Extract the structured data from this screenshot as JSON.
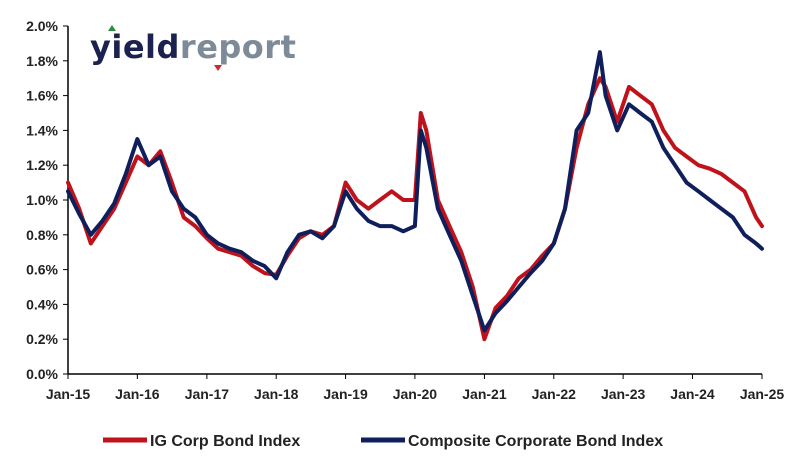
{
  "logo": {
    "part1": "yield",
    "part2": "report",
    "colors": {
      "part1": "#1b2250",
      "part2": "#7d8b99",
      "arrow_up": "#2e8b3e",
      "arrow_down": "#cc2a2a"
    }
  },
  "chart_data": {
    "type": "line",
    "title": "",
    "xlabel": "",
    "ylabel": "",
    "ylim": [
      0,
      2.0
    ],
    "y_ticks": [
      0.0,
      0.2,
      0.4,
      0.6,
      0.8,
      1.0,
      1.2,
      1.4,
      1.6,
      1.8,
      2.0
    ],
    "y_tick_labels": [
      "0.0%",
      "0.2%",
      "0.4%",
      "0.6%",
      "0.8%",
      "1.0%",
      "1.2%",
      "1.4%",
      "1.6%",
      "1.8%",
      "2.0%"
    ],
    "x_ticks": [
      "2015-01",
      "2016-01",
      "2017-01",
      "2018-01",
      "2019-01",
      "2020-01",
      "2021-01",
      "2022-01",
      "2023-01",
      "2024-01",
      "2025-01"
    ],
    "x_tick_labels": [
      "Jan-15",
      "Jan-16",
      "Jan-17",
      "Jan-18",
      "Jan-19",
      "Jan-20",
      "Jan-21",
      "Jan-22",
      "Jan-23",
      "Jan-24",
      "Jan-25"
    ],
    "grid": false,
    "legend_position": "bottom",
    "series": [
      {
        "name": "IG Corp Bond Index",
        "color": "#c0121b",
        "x": [
          "2015-01",
          "2015-03",
          "2015-05",
          "2015-07",
          "2015-09",
          "2015-11",
          "2016-01",
          "2016-03",
          "2016-05",
          "2016-07",
          "2016-09",
          "2016-11",
          "2017-01",
          "2017-03",
          "2017-05",
          "2017-07",
          "2017-09",
          "2017-11",
          "2018-01",
          "2018-03",
          "2018-05",
          "2018-07",
          "2018-09",
          "2018-11",
          "2019-01",
          "2019-03",
          "2019-05",
          "2019-07",
          "2019-09",
          "2019-11",
          "2020-01",
          "2020-02",
          "2020-03",
          "2020-05",
          "2020-07",
          "2020-09",
          "2020-11",
          "2021-01",
          "2021-03",
          "2021-05",
          "2021-07",
          "2021-09",
          "2021-11",
          "2022-01",
          "2022-03",
          "2022-05",
          "2022-07",
          "2022-09",
          "2022-10",
          "2022-12",
          "2023-02",
          "2023-04",
          "2023-06",
          "2023-08",
          "2023-10",
          "2023-12",
          "2024-02",
          "2024-04",
          "2024-06",
          "2024-08",
          "2024-10",
          "2024-12",
          "2025-01"
        ],
        "y": [
          1.1,
          0.95,
          0.75,
          0.85,
          0.95,
          1.1,
          1.25,
          1.2,
          1.28,
          1.1,
          0.9,
          0.85,
          0.78,
          0.72,
          0.7,
          0.68,
          0.62,
          0.58,
          0.57,
          0.68,
          0.78,
          0.82,
          0.8,
          0.85,
          1.1,
          1.0,
          0.95,
          1.0,
          1.05,
          1.0,
          1.0,
          1.5,
          1.4,
          1.0,
          0.85,
          0.7,
          0.5,
          0.2,
          0.38,
          0.45,
          0.55,
          0.6,
          0.68,
          0.75,
          0.95,
          1.3,
          1.55,
          1.7,
          1.65,
          1.45,
          1.65,
          1.6,
          1.55,
          1.4,
          1.3,
          1.25,
          1.2,
          1.18,
          1.15,
          1.1,
          1.05,
          0.9,
          0.85
        ]
      },
      {
        "name": "Composite Corporate Bond Index",
        "color": "#0f1f5c",
        "x": [
          "2015-01",
          "2015-03",
          "2015-05",
          "2015-07",
          "2015-09",
          "2015-11",
          "2016-01",
          "2016-03",
          "2016-05",
          "2016-07",
          "2016-09",
          "2016-11",
          "2017-01",
          "2017-03",
          "2017-05",
          "2017-07",
          "2017-09",
          "2017-11",
          "2018-01",
          "2018-03",
          "2018-05",
          "2018-07",
          "2018-09",
          "2018-11",
          "2019-01",
          "2019-03",
          "2019-05",
          "2019-07",
          "2019-09",
          "2019-11",
          "2020-01",
          "2020-02",
          "2020-03",
          "2020-05",
          "2020-07",
          "2020-09",
          "2020-11",
          "2021-01",
          "2021-03",
          "2021-05",
          "2021-07",
          "2021-09",
          "2021-11",
          "2022-01",
          "2022-03",
          "2022-05",
          "2022-07",
          "2022-09",
          "2022-10",
          "2022-12",
          "2023-02",
          "2023-04",
          "2023-06",
          "2023-08",
          "2023-10",
          "2023-12",
          "2024-02",
          "2024-04",
          "2024-06",
          "2024-08",
          "2024-10",
          "2024-12",
          "2025-01"
        ],
        "y": [
          1.05,
          0.92,
          0.8,
          0.88,
          0.98,
          1.15,
          1.35,
          1.2,
          1.25,
          1.05,
          0.95,
          0.9,
          0.8,
          0.75,
          0.72,
          0.7,
          0.65,
          0.62,
          0.55,
          0.7,
          0.8,
          0.82,
          0.78,
          0.85,
          1.05,
          0.95,
          0.88,
          0.85,
          0.85,
          0.82,
          0.85,
          1.4,
          1.3,
          0.95,
          0.8,
          0.65,
          0.45,
          0.25,
          0.35,
          0.42,
          0.5,
          0.58,
          0.65,
          0.75,
          0.95,
          1.4,
          1.5,
          1.85,
          1.6,
          1.4,
          1.55,
          1.5,
          1.45,
          1.3,
          1.2,
          1.1,
          1.05,
          1.0,
          0.95,
          0.9,
          0.8,
          0.75,
          0.72
        ]
      }
    ]
  }
}
